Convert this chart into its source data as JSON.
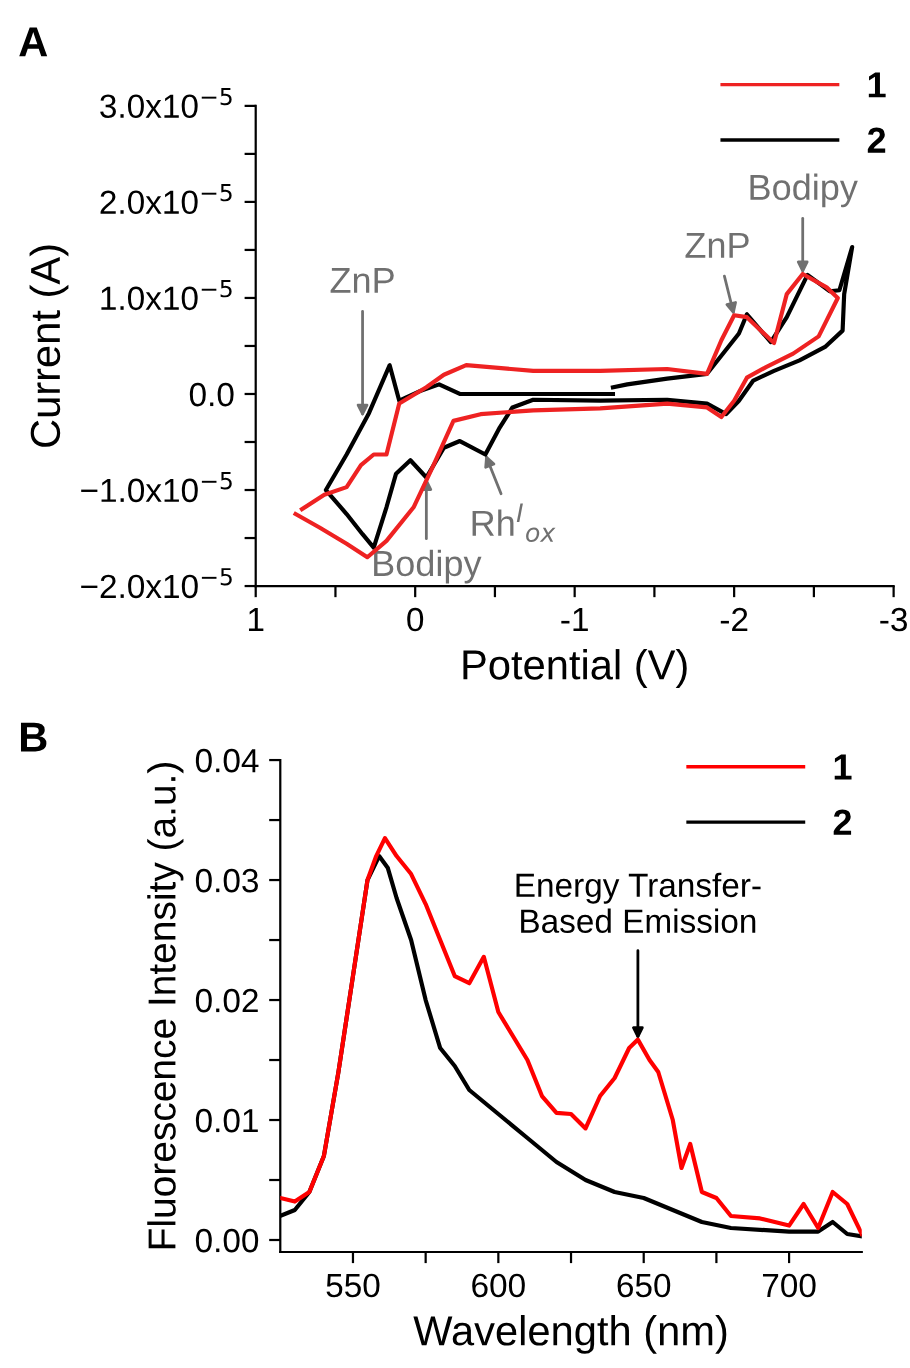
{
  "chart_data": [
    {
      "type": "line",
      "title": "A",
      "xlabel": "Potential (V)",
      "ylabel": "Current (A)",
      "xlim": [
        1,
        -3
      ],
      "ylim": [
        -2e-05,
        3e-05
      ],
      "xticks": [
        1,
        {
          "value": 0.5,
          "label": null
        },
        0,
        {
          "value": -0.5,
          "label": null
        },
        -1,
        {
          "value": -1.5,
          "label": null
        },
        -2,
        {
          "value": -2.5,
          "label": null
        },
        -3
      ],
      "yticks": [
        {
          "value": -2e-05,
          "label": "−2.0x10$^{−5}$"
        },
        {
          "value": -1.5e-05,
          "label": null
        },
        {
          "value": -1e-05,
          "label": "−1.0x10$^{−5}$"
        },
        {
          "value": -5e-06,
          "label": null
        },
        {
          "value": 0,
          "label": "0.0"
        },
        {
          "value": 5e-06,
          "label": null
        },
        {
          "value": 1e-05,
          "label": "1.0x10$^{−5}$"
        },
        {
          "value": 1.5e-05,
          "label": null
        },
        {
          "value": 2e-05,
          "label": "2.0x10$^{−5}$"
        },
        {
          "value": 2.5e-05,
          "label": null
        },
        {
          "value": 3e-05,
          "label": "3.0x10$^{−5}$"
        }
      ],
      "grid": false,
      "legend": "top right",
      "marker": "none",
      "line_style": "solid",
      "series": [
        {
          "name": "1",
          "color": "#ee2222",
          "x": [
            0.75,
            0.6,
            0.43,
            0.3,
            0.18,
            0.01,
            -0.11,
            -0.24,
            -0.41,
            -0.74,
            -1.16,
            -1.58,
            -1.83,
            -1.92,
            -2.0,
            -2.08,
            -2.2,
            -2.37,
            -2.53,
            -2.65,
            -2.58,
            -2.43,
            -2.33,
            -2.25,
            -2.08,
            -2.0,
            -1.92,
            -1.83,
            -1.58,
            -1.16,
            -0.74,
            -0.32,
            -0.18,
            -0.07,
            0.1,
            0.18,
            0.26,
            0.34,
            0.43,
            0.57,
            0.71
          ],
          "values": [
            -1.25e-05,
            -1.39e-05,
            -1.56e-05,
            -1.7e-05,
            -1.53e-05,
            -1.18e-05,
            -7.6e-06,
            -2.8e-06,
            -2.1e-06,
            -1.7e-06,
            -1.5e-06,
            -1e-06,
            -1.4e-06,
            -2.4e-06,
            -7e-07,
            1.7e-06,
            2.8e-06,
            4.2e-06,
            6e-06,
            1e-05,
            1.11e-05,
            1.25e-05,
            1.04e-05,
            5.3e-06,
            8e-06,
            8.2e-06,
            5.6e-06,
            2.1e-06,
            2.6e-06,
            2.4e-06,
            2.4e-06,
            3e-06,
            2e-06,
            7e-07,
            -1e-06,
            -6.3e-06,
            -6.3e-06,
            -7.4e-06,
            -9.7e-06,
            -1.05e-05,
            -1.2e-05
          ]
        },
        {
          "name": "2",
          "color": "#000000",
          "x": [
            -1.24,
            -0.74,
            -0.28,
            -0.15,
            -0.03,
            0.1,
            0.16,
            0.29,
            0.43,
            0.56,
            0.43,
            0.33,
            0.26,
            0.18,
            0.12,
            0.03,
            -0.07,
            -0.18,
            -0.28,
            -0.44,
            -0.53,
            -0.61,
            -0.74,
            -1.16,
            -1.58,
            -1.83,
            -1.95,
            -2.03,
            -2.12,
            -2.25,
            -2.41,
            -2.57,
            -2.68,
            -2.69,
            -2.74,
            -2.66,
            -2.6,
            -2.46,
            -2.33,
            -2.23,
            -2.08,
            -2.03,
            -1.83,
            -1.58,
            -1.33,
            -1.24
          ],
          "values": [
            0.0,
            0.0,
            0.0,
            1e-06,
            3e-07,
            -7e-07,
            3e-06,
            -2e-06,
            -6.3e-06,
            -1e-05,
            -1.25e-05,
            -1.46e-05,
            -1.6e-05,
            -1.18e-05,
            -8.3e-06,
            -6.9e-06,
            -8.7e-06,
            -5.6e-06,
            -4.9e-06,
            -6.3e-06,
            -3.5e-06,
            -1.4e-06,
            -6e-07,
            -7e-07,
            -6e-07,
            -1e-06,
            -2.1e-06,
            -7e-07,
            1.4e-06,
            2.4e-06,
            3.5e-06,
            4.9e-06,
            6.6e-06,
            1.04e-05,
            1.53e-05,
            1.08e-05,
            1.07e-05,
            1.24e-05,
            8e-06,
            5.4e-06,
            8.3e-06,
            6.3e-06,
            2.1e-06,
            1.6e-06,
            1e-06,
            7e-07
          ]
        }
      ],
      "annotations": [
        {
          "text": "ZnP",
          "x": 0.33,
          "y": -2.4e-06
        },
        {
          "text": "Bodipy",
          "x": -0.07,
          "y": -8.7e-06
        },
        {
          "text": "Rh$^{I}$$_{ox}$",
          "x": -0.44,
          "y": -6.3e-06
        },
        {
          "text": "ZnP",
          "x": -2.0,
          "y": 8.2e-06
        },
        {
          "text": "Bodipy",
          "x": -2.43,
          "y": 1.25e-05
        }
      ]
    },
    {
      "type": "line",
      "title": "B",
      "xlabel": "Wavelength (nm)",
      "ylabel": "Fluorescence Intensity (a.u.)",
      "xlim": [
        525,
        725
      ],
      "ylim": [
        -0.001,
        0.04
      ],
      "xticks": [
        550,
        {
          "value": 575,
          "label": null
        },
        600,
        {
          "value": 625,
          "label": null
        },
        650,
        {
          "value": 675,
          "label": null
        },
        700
      ],
      "yticks": [
        {
          "value": 0,
          "label": "0.00"
        },
        {
          "value": 0.005,
          "label": null
        },
        {
          "value": 0.01,
          "label": "0.01"
        },
        {
          "value": 0.015,
          "label": null
        },
        {
          "value": 0.02,
          "label": "0.02"
        },
        {
          "value": 0.025,
          "label": null
        },
        {
          "value": 0.03,
          "label": "0.03"
        },
        {
          "value": 0.035,
          "label": null
        },
        {
          "value": 0.04,
          "label": "0.04"
        }
      ],
      "grid": false,
      "legend": "top right",
      "marker": "none",
      "line_style": "solid",
      "series": [
        {
          "name": "1",
          "color": "#ff0000",
          "x": [
            525,
            530,
            535,
            540,
            545,
            550,
            555,
            558,
            561,
            565,
            570,
            575,
            580,
            585,
            590,
            595,
            600,
            605,
            610,
            615,
            620,
            625,
            630,
            635,
            640,
            645,
            648,
            652,
            655,
            660,
            663,
            666,
            670,
            675,
            680,
            690,
            700,
            705,
            710,
            715,
            720,
            725
          ],
          "values": [
            0.0035,
            0.0032,
            0.004,
            0.007,
            0.014,
            0.022,
            0.03,
            0.032,
            0.0335,
            0.032,
            0.0305,
            0.028,
            0.025,
            0.022,
            0.0214,
            0.0236,
            0.019,
            0.017,
            0.015,
            0.012,
            0.0106,
            0.0105,
            0.0093,
            0.012,
            0.0135,
            0.016,
            0.0167,
            0.015,
            0.014,
            0.01,
            0.006,
            0.008,
            0.004,
            0.0035,
            0.002,
            0.0018,
            0.0012,
            0.003,
            0.001,
            0.004,
            0.003,
            0.0005
          ]
        },
        {
          "name": "2",
          "color": "#000000",
          "x": [
            525,
            530,
            535,
            540,
            545,
            550,
            555,
            559,
            562,
            565,
            570,
            575,
            580,
            585,
            590,
            600,
            610,
            620,
            630,
            640,
            650,
            660,
            670,
            680,
            700,
            710,
            715,
            720,
            725
          ],
          "values": [
            0.002,
            0.0025,
            0.004,
            0.007,
            0.014,
            0.022,
            0.03,
            0.032,
            0.031,
            0.0285,
            0.025,
            0.02,
            0.016,
            0.0145,
            0.0125,
            0.0105,
            0.0085,
            0.0065,
            0.005,
            0.004,
            0.0035,
            0.0025,
            0.0015,
            0.001,
            0.0007,
            0.0007,
            0.0015,
            0.0005,
            0.0003
          ]
        }
      ],
      "annotations": [
        {
          "text": "Energy Transfer-\nBased Emission",
          "x": 648,
          "y": 0.0167
        }
      ]
    }
  ]
}
